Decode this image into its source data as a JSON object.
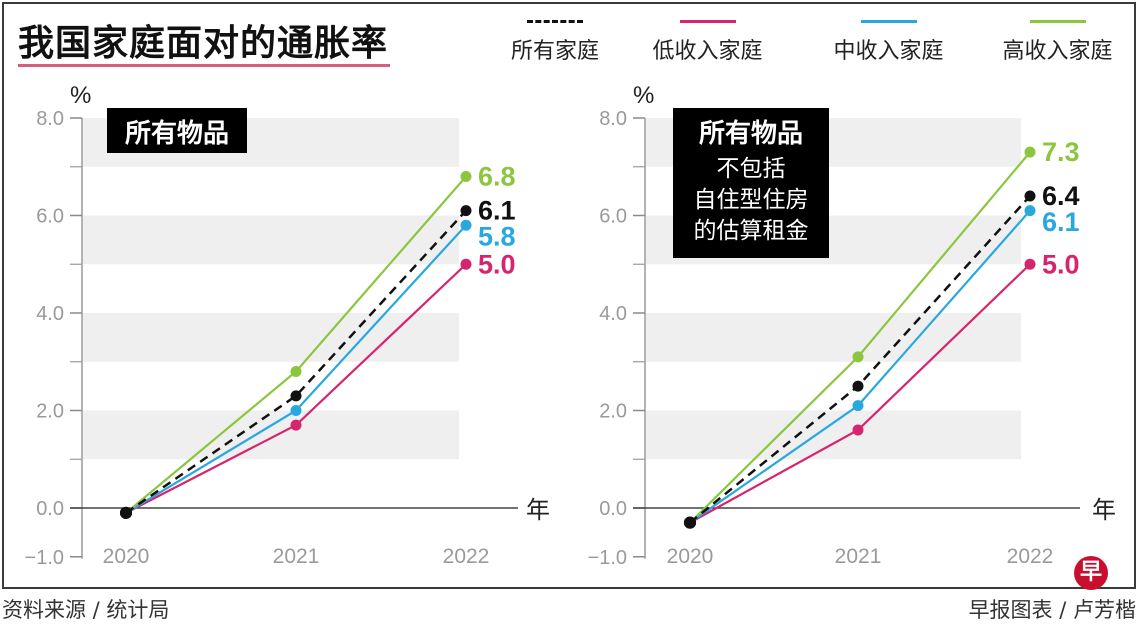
{
  "title": "我国家庭面对的通胀率",
  "legend": [
    {
      "label": "所有家庭",
      "color": "#111111",
      "dashed": true
    },
    {
      "label": "低收入家庭",
      "color": "#d6246e",
      "dashed": false
    },
    {
      "label": "中收入家庭",
      "color": "#29a8e0",
      "dashed": false
    },
    {
      "label": "高收入家庭",
      "color": "#8cc63f",
      "dashed": false
    }
  ],
  "footer": {
    "source": "资料来源 / 统计局",
    "credit": "早报图表 / 卢芳楷",
    "logo_char": "早"
  },
  "chart_data": [
    {
      "type": "line",
      "title": "所有物品",
      "subtitle_lines": [],
      "ylabel": "%",
      "xlabel": "年",
      "x": [
        "2020",
        "2021",
        "2022"
      ],
      "ylim": [
        -1.0,
        8.0
      ],
      "yticks": [
        "8.0",
        "6.0",
        "4.0",
        "2.0",
        "0.0",
        "−1.0"
      ],
      "ytick_values": [
        8.0,
        6.0,
        4.0,
        2.0,
        0.0,
        -1.0
      ],
      "grid": "alternating-bands",
      "series": [
        {
          "name": "高收入家庭",
          "color": "#8cc63f",
          "dashed": false,
          "values": [
            -0.1,
            2.8,
            6.8
          ],
          "end_label": "6.8"
        },
        {
          "name": "所有家庭",
          "color": "#111111",
          "dashed": true,
          "values": [
            -0.1,
            2.3,
            6.1
          ],
          "end_label": "6.1"
        },
        {
          "name": "中收入家庭",
          "color": "#29a8e0",
          "dashed": false,
          "values": [
            -0.1,
            2.0,
            5.8
          ],
          "end_label": "5.8"
        },
        {
          "name": "低收入家庭",
          "color": "#d6246e",
          "dashed": false,
          "values": [
            -0.1,
            1.7,
            5.0
          ],
          "end_label": "5.0"
        }
      ]
    },
    {
      "type": "line",
      "title": "所有物品",
      "subtitle_lines": [
        "不包括",
        "自住型住房",
        "的估算租金"
      ],
      "ylabel": "%",
      "xlabel": "年",
      "x": [
        "2020",
        "2021",
        "2022"
      ],
      "ylim": [
        -1.0,
        8.0
      ],
      "yticks": [
        "8.0",
        "6.0",
        "4.0",
        "2.0",
        "0.0",
        "−1.0"
      ],
      "ytick_values": [
        8.0,
        6.0,
        4.0,
        2.0,
        0.0,
        -1.0
      ],
      "grid": "alternating-bands",
      "series": [
        {
          "name": "高收入家庭",
          "color": "#8cc63f",
          "dashed": false,
          "values": [
            -0.3,
            3.1,
            7.3
          ],
          "end_label": "7.3"
        },
        {
          "name": "所有家庭",
          "color": "#111111",
          "dashed": true,
          "values": [
            -0.3,
            2.5,
            6.4
          ],
          "end_label": "6.4"
        },
        {
          "name": "中收入家庭",
          "color": "#29a8e0",
          "dashed": false,
          "values": [
            -0.3,
            2.1,
            6.1
          ],
          "end_label": "6.1"
        },
        {
          "name": "低收入家庭",
          "color": "#d6246e",
          "dashed": false,
          "values": [
            -0.3,
            1.6,
            5.0
          ],
          "end_label": "5.0"
        }
      ]
    }
  ]
}
